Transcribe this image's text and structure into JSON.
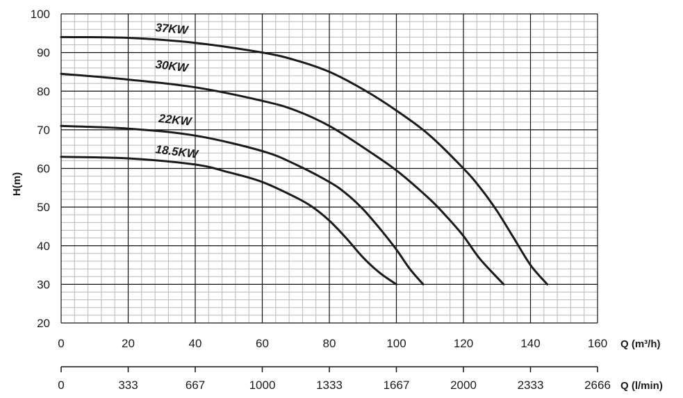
{
  "chart_data": {
    "type": "line",
    "title": "",
    "ylabel": "H(m)",
    "xlabel": "Q (m³/h)",
    "xlabel2": "Q (l/min)",
    "xlim": [
      0,
      160
    ],
    "ylim": [
      20,
      100
    ],
    "x_ticks": [
      "0",
      "20",
      "40",
      "60",
      "80",
      "100",
      "120",
      "140",
      "160"
    ],
    "y_ticks": [
      "20",
      "30",
      "40",
      "50",
      "60",
      "70",
      "80",
      "90",
      "100"
    ],
    "x2_ticks": [
      "0",
      "333",
      "667",
      "1000",
      "1333",
      "1667",
      "2000",
      "2333",
      "2666"
    ],
    "grid": true,
    "series": [
      {
        "name": "37KW",
        "points": [
          [
            0,
            94
          ],
          [
            20,
            93.8
          ],
          [
            40,
            92.5
          ],
          [
            60,
            90
          ],
          [
            70,
            88
          ],
          [
            80,
            85
          ],
          [
            90,
            80.5
          ],
          [
            100,
            75
          ],
          [
            110,
            68.5
          ],
          [
            120,
            60
          ],
          [
            125,
            55
          ],
          [
            130,
            49
          ],
          [
            135,
            42
          ],
          [
            140,
            35
          ],
          [
            145,
            30
          ]
        ]
      },
      {
        "name": "30KW",
        "points": [
          [
            0,
            84.5
          ],
          [
            20,
            83
          ],
          [
            40,
            81
          ],
          [
            60,
            77.5
          ],
          [
            70,
            75
          ],
          [
            80,
            71
          ],
          [
            90,
            65.5
          ],
          [
            100,
            59.5
          ],
          [
            110,
            52
          ],
          [
            115,
            47.5
          ],
          [
            120,
            42.5
          ],
          [
            125,
            36.5
          ],
          [
            132,
            30
          ]
        ]
      },
      {
        "name": "22KW",
        "points": [
          [
            0,
            71
          ],
          [
            20,
            70.3
          ],
          [
            40,
            68.5
          ],
          [
            60,
            64.5
          ],
          [
            70,
            61
          ],
          [
            80,
            56.5
          ],
          [
            85,
            53.5
          ],
          [
            90,
            49.5
          ],
          [
            95,
            44.5
          ],
          [
            100,
            39
          ],
          [
            104,
            34
          ],
          [
            108,
            30
          ]
        ]
      },
      {
        "name": "18.5KW",
        "points": [
          [
            0,
            63
          ],
          [
            20,
            62.6
          ],
          [
            40,
            61
          ],
          [
            50,
            59
          ],
          [
            60,
            56.5
          ],
          [
            70,
            52.5
          ],
          [
            75,
            50
          ],
          [
            80,
            46.5
          ],
          [
            85,
            42
          ],
          [
            90,
            37
          ],
          [
            95,
            33
          ],
          [
            100,
            30
          ]
        ]
      }
    ]
  }
}
